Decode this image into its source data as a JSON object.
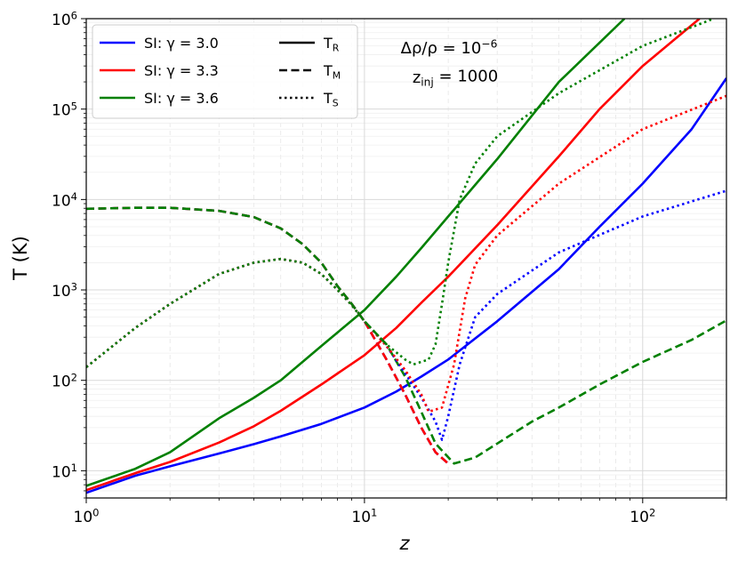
{
  "chart_data": {
    "type": "line",
    "title": "",
    "xlabel": "z",
    "ylabel": "T (K)",
    "x_scale": "log",
    "y_scale": "log",
    "xlim": [
      1,
      200
    ],
    "ylim": [
      5,
      1000000
    ],
    "x_ticks": [
      {
        "value": 1,
        "label": "10^0"
      },
      {
        "value": 10,
        "label": "10^1"
      },
      {
        "value": 100,
        "label": "10^2"
      }
    ],
    "y_ticks": [
      {
        "value": 10,
        "label": "10^1"
      },
      {
        "value": 100,
        "label": "10^2"
      },
      {
        "value": 1000,
        "label": "10^3"
      },
      {
        "value": 10000,
        "label": "10^4"
      },
      {
        "value": 100000,
        "label": "10^5"
      },
      {
        "value": 1000000,
        "label": "10^6"
      }
    ],
    "grid": true,
    "legend_position": "top-left",
    "annotation": {
      "line1": "Δρ/ρ = 10^−6",
      "line2": "z_inj = 1000"
    },
    "legend": {
      "models": [
        {
          "label": "SI: γ = 3.0",
          "color": "#0000ff"
        },
        {
          "label": "SI: γ = 3.3",
          "color": "#ff0000"
        },
        {
          "label": "SI: γ = 3.6",
          "color": "#008000"
        }
      ],
      "styles": [
        {
          "label": "T_R",
          "dash": "solid"
        },
        {
          "label": "T_M",
          "dash": "dashed"
        },
        {
          "label": "T_S",
          "dash": "dotted"
        }
      ]
    },
    "series": [
      {
        "model": "SI: γ = 3.0",
        "style": "T_R",
        "color": "#0000ff",
        "dash": "solid",
        "points": [
          [
            1,
            5.7
          ],
          [
            1.5,
            8.8
          ],
          [
            2,
            11.2
          ],
          [
            3,
            15.5
          ],
          [
            4,
            19.7
          ],
          [
            5,
            24
          ],
          [
            7,
            33
          ],
          [
            10,
            50
          ],
          [
            13,
            75
          ],
          [
            16,
            110
          ],
          [
            20,
            170
          ],
          [
            30,
            450
          ],
          [
            50,
            1700
          ],
          [
            70,
            5000
          ],
          [
            100,
            15000
          ],
          [
            150,
            60000
          ],
          [
            200,
            220000
          ]
        ]
      },
      {
        "model": "SI: γ = 3.3",
        "style": "T_R",
        "color": "#ff0000",
        "dash": "solid",
        "points": [
          [
            1,
            6.1
          ],
          [
            1.5,
            9.4
          ],
          [
            2,
            12.5
          ],
          [
            3,
            20.5
          ],
          [
            4,
            31
          ],
          [
            5,
            46
          ],
          [
            7,
            90
          ],
          [
            10,
            190
          ],
          [
            13,
            380
          ],
          [
            16,
            720
          ],
          [
            20,
            1400
          ],
          [
            30,
            5200
          ],
          [
            50,
            30000
          ],
          [
            70,
            100000
          ],
          [
            100,
            300000
          ],
          [
            160,
            1000000
          ]
        ]
      },
      {
        "model": "SI: γ = 3.6",
        "style": "T_R",
        "color": "#008000",
        "dash": "solid",
        "points": [
          [
            1,
            6.8
          ],
          [
            1.5,
            10.5
          ],
          [
            2,
            16
          ],
          [
            3,
            38
          ],
          [
            4,
            64
          ],
          [
            5,
            100
          ],
          [
            7,
            240
          ],
          [
            10,
            600
          ],
          [
            13,
            1400
          ],
          [
            16,
            2900
          ],
          [
            20,
            6500
          ],
          [
            30,
            28000
          ],
          [
            50,
            200000
          ],
          [
            86,
            1000000
          ]
        ]
      },
      {
        "model": "SI: γ = 3.0",
        "style": "T_M",
        "color": "#0000ff",
        "dash": "dashed",
        "points": [
          [
            1,
            7900
          ],
          [
            1.5,
            8100
          ],
          [
            2,
            8100
          ],
          [
            3,
            7500
          ],
          [
            4,
            6400
          ],
          [
            5,
            4800
          ],
          [
            6,
            3200
          ],
          [
            7,
            2000
          ],
          [
            8,
            1100
          ],
          [
            9,
            700
          ],
          [
            10,
            450
          ],
          [
            12,
            170
          ],
          [
            14,
            70
          ],
          [
            16,
            30
          ],
          [
            18,
            16
          ],
          [
            20,
            12
          ]
        ]
      },
      {
        "model": "SI: γ = 3.3",
        "style": "T_M",
        "color": "#ff0000",
        "dash": "dashed",
        "points": [
          [
            1,
            7900
          ],
          [
            1.5,
            8100
          ],
          [
            2,
            8100
          ],
          [
            3,
            7500
          ],
          [
            4,
            6400
          ],
          [
            5,
            4800
          ],
          [
            6,
            3200
          ],
          [
            7,
            2000
          ],
          [
            8,
            1100
          ],
          [
            9,
            700
          ],
          [
            10,
            450
          ],
          [
            12,
            170
          ],
          [
            14,
            70
          ],
          [
            16,
            30
          ],
          [
            18,
            16
          ],
          [
            20,
            12
          ]
        ]
      },
      {
        "model": "SI: γ = 3.6",
        "style": "T_M",
        "color": "#008000",
        "dash": "dashed",
        "points": [
          [
            1,
            7900
          ],
          [
            1.5,
            8100
          ],
          [
            2,
            8100
          ],
          [
            3,
            7500
          ],
          [
            4,
            6400
          ],
          [
            5,
            4800
          ],
          [
            6,
            3200
          ],
          [
            7,
            2000
          ],
          [
            8,
            1100
          ],
          [
            9,
            700
          ],
          [
            10,
            450
          ],
          [
            12,
            250
          ],
          [
            14,
            110
          ],
          [
            16,
            45
          ],
          [
            18,
            20
          ],
          [
            21,
            12
          ],
          [
            25,
            14
          ],
          [
            30,
            20
          ],
          [
            40,
            35
          ],
          [
            50,
            50
          ],
          [
            70,
            90
          ],
          [
            100,
            160
          ],
          [
            150,
            280
          ],
          [
            200,
            460
          ]
        ]
      },
      {
        "model": "SI: γ = 3.0",
        "style": "T_S",
        "color": "#0000ff",
        "dash": "dotted",
        "points": [
          [
            1,
            140
          ],
          [
            1.5,
            380
          ],
          [
            2,
            700
          ],
          [
            3,
            1500
          ],
          [
            4,
            2000
          ],
          [
            5,
            2200
          ],
          [
            6,
            2000
          ],
          [
            7,
            1500
          ],
          [
            8,
            1000
          ],
          [
            9,
            680
          ],
          [
            10,
            450
          ],
          [
            12,
            240
          ],
          [
            14,
            120
          ],
          [
            16,
            65
          ],
          [
            18,
            35
          ],
          [
            19,
            22
          ],
          [
            20,
            40
          ],
          [
            22,
            150
          ],
          [
            25,
            500
          ],
          [
            30,
            900
          ],
          [
            50,
            2600
          ],
          [
            100,
            6500
          ],
          [
            200,
            12500
          ]
        ]
      },
      {
        "model": "SI: γ = 3.3",
        "style": "T_S",
        "color": "#ff0000",
        "dash": "dotted",
        "points": [
          [
            1,
            140
          ],
          [
            1.5,
            380
          ],
          [
            2,
            700
          ],
          [
            3,
            1500
          ],
          [
            4,
            2000
          ],
          [
            5,
            2200
          ],
          [
            6,
            2000
          ],
          [
            7,
            1500
          ],
          [
            8,
            1000
          ],
          [
            9,
            680
          ],
          [
            10,
            450
          ],
          [
            12,
            240
          ],
          [
            14,
            130
          ],
          [
            16,
            70
          ],
          [
            17,
            45
          ],
          [
            19,
            50
          ],
          [
            21,
            150
          ],
          [
            23,
            800
          ],
          [
            25,
            1900
          ],
          [
            30,
            4000
          ],
          [
            50,
            15000
          ],
          [
            100,
            60000
          ],
          [
            200,
            140000
          ]
        ]
      },
      {
        "model": "SI: γ = 3.6",
        "style": "T_S",
        "color": "#008000",
        "dash": "dotted",
        "points": [
          [
            1,
            140
          ],
          [
            1.5,
            380
          ],
          [
            2,
            700
          ],
          [
            3,
            1500
          ],
          [
            4,
            2000
          ],
          [
            5,
            2200
          ],
          [
            6,
            2000
          ],
          [
            7,
            1500
          ],
          [
            8,
            1000
          ],
          [
            9,
            680
          ],
          [
            10,
            450
          ],
          [
            12,
            250
          ],
          [
            14,
            170
          ],
          [
            15,
            150
          ],
          [
            17,
            170
          ],
          [
            18,
            250
          ],
          [
            19,
            700
          ],
          [
            20,
            2000
          ],
          [
            22,
            10000
          ],
          [
            25,
            25000
          ],
          [
            30,
            50000
          ],
          [
            50,
            150000
          ],
          [
            100,
            500000
          ],
          [
            180,
            1000000
          ]
        ]
      }
    ]
  }
}
